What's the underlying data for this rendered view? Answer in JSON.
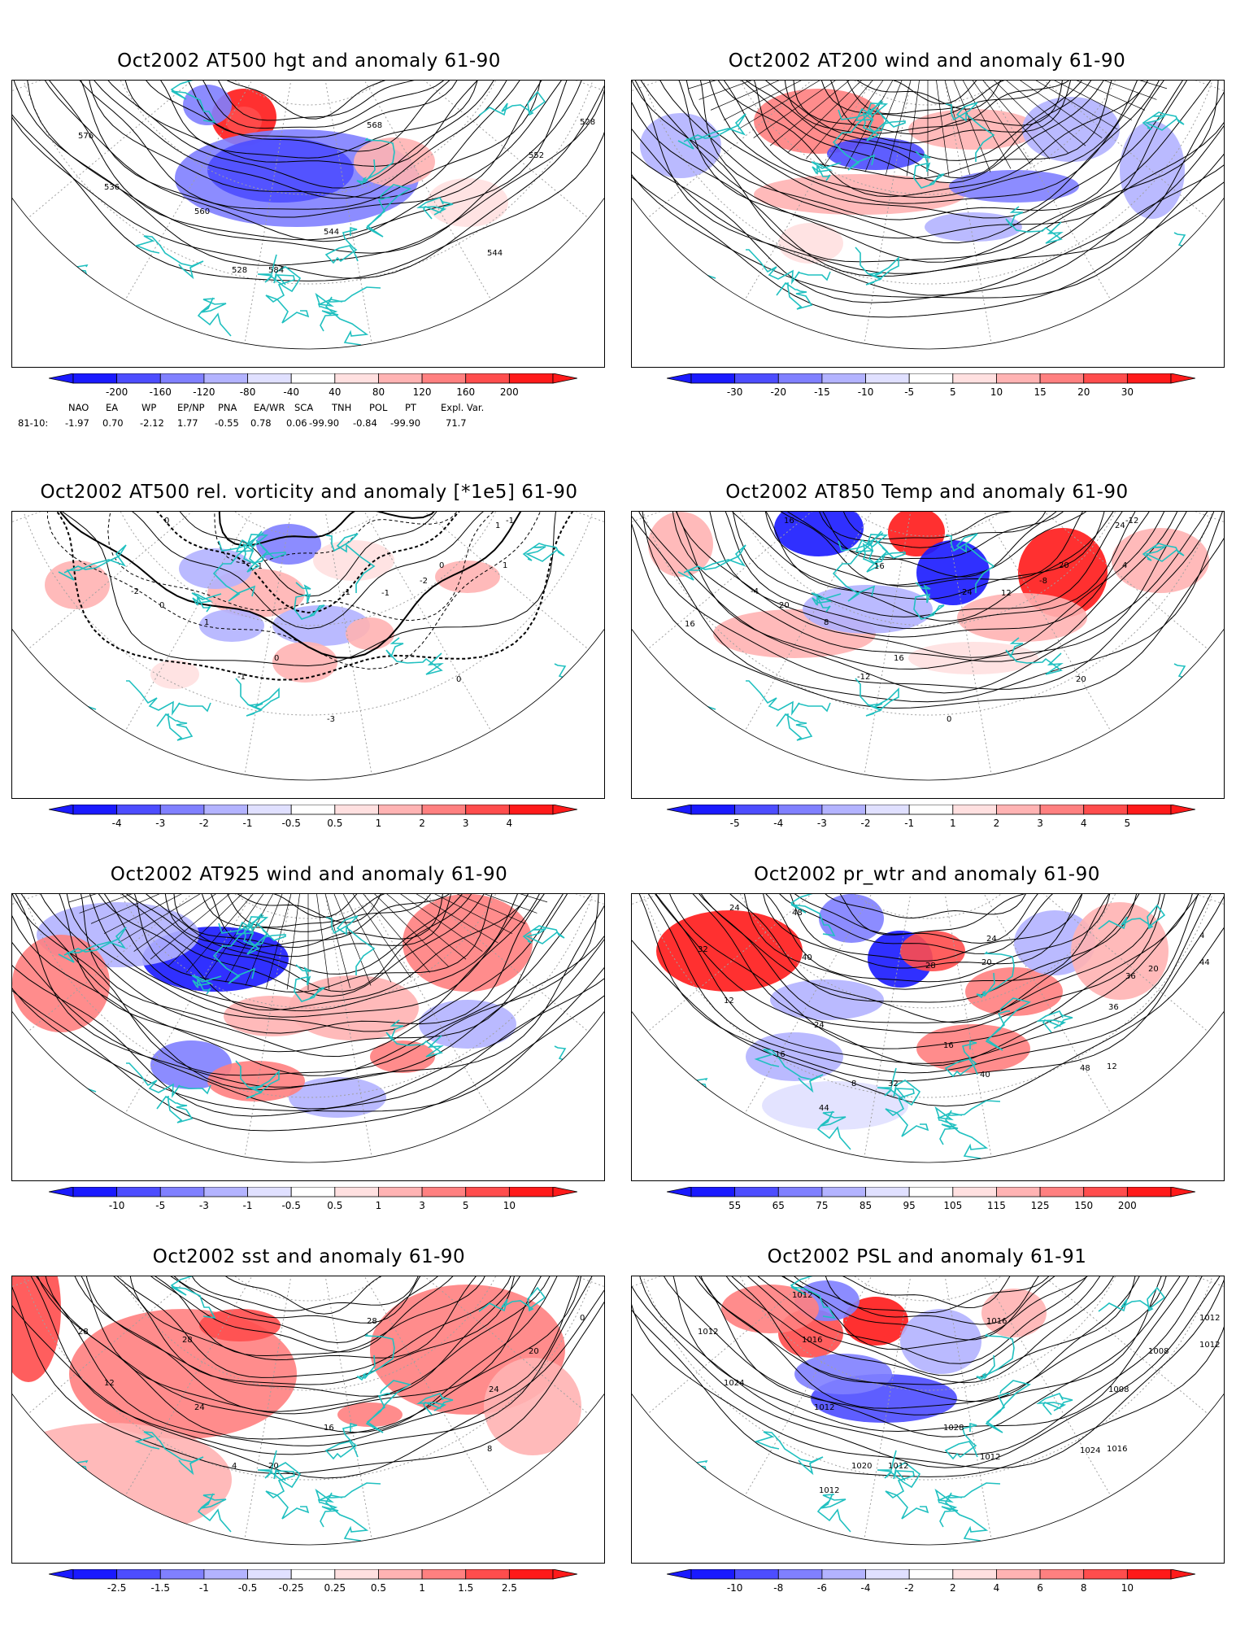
{
  "panels": [
    {
      "id": "p1",
      "title": "Oct2002 AT500 hgt and anomaly 61-90",
      "kind": "hgt",
      "labels": [
        "528",
        "528",
        "544",
        "536",
        "544",
        "552",
        "560",
        "568",
        "576",
        "584"
      ],
      "cbar_ticks": [
        "-200",
        "-160",
        "-120",
        "-80",
        "-40",
        "40",
        "80",
        "120",
        "160",
        "200"
      ]
    },
    {
      "id": "p2",
      "title": "Oct2002 AT200 wind and anomaly 61-90",
      "kind": "wind",
      "labels": [],
      "cbar_ticks": [
        "-30",
        "-20",
        "-15",
        "-10",
        "-5",
        "5",
        "10",
        "15",
        "20",
        "30"
      ]
    },
    {
      "id": "p3",
      "title": "Oct2002 AT500 rel. vorticity and anomaly [*1e5] 61-90",
      "kind": "vort",
      "labels": [
        "-1",
        "-1",
        "-2",
        "-2",
        "-3",
        "1",
        "1",
        "-1",
        "0",
        "0",
        "0",
        "0",
        "-1",
        "1",
        "-1",
        "0"
      ],
      "cbar_ticks": [
        "-4",
        "-3",
        "-2",
        "-1",
        "-0.5",
        "0.5",
        "1",
        "2",
        "3",
        "4"
      ]
    },
    {
      "id": "p4",
      "title": "Oct2002 AT850 Temp and anomaly 61-90",
      "kind": "temp",
      "labels": [
        "-12",
        "-12",
        "-8",
        "-4",
        "0",
        "4",
        "8",
        "12",
        "16",
        "16",
        "20",
        "20",
        "24",
        "24",
        "16",
        "20",
        "16"
      ],
      "cbar_ticks": [
        "-5",
        "-4",
        "-3",
        "-2",
        "-1",
        "1",
        "2",
        "3",
        "4",
        "5"
      ]
    },
    {
      "id": "p5",
      "title": "Oct2002 AT925 wind and anomaly 61-90",
      "kind": "wind",
      "labels": [],
      "cbar_ticks": [
        "-10",
        "-5",
        "-3",
        "-1",
        "-0.5",
        "0.5",
        "1",
        "3",
        "5",
        "10"
      ]
    },
    {
      "id": "p6",
      "title": "Oct2002 pr_wtr and anomaly 61-90",
      "kind": "prw",
      "labels": [
        "4",
        "8",
        "12",
        "12",
        "16",
        "20",
        "24",
        "24",
        "32",
        "32",
        "36",
        "40",
        "40",
        "44",
        "44",
        "48",
        "48",
        "28",
        "36",
        "16",
        "20",
        "24"
      ],
      "cbar_ticks": [
        "55",
        "65",
        "75",
        "85",
        "95",
        "105",
        "115",
        "125",
        "150",
        "200"
      ]
    },
    {
      "id": "p7",
      "title": "Oct2002 sst and anomaly 61-90",
      "kind": "sst",
      "labels": [
        "0",
        "4",
        "8",
        "12",
        "16",
        "20",
        "24",
        "28",
        "28",
        "20",
        "24",
        "28"
      ],
      "cbar_ticks": [
        "-2.5",
        "-1.5",
        "-1",
        "-0.5",
        "-0.25",
        "0.25",
        "0.5",
        "1",
        "1.5",
        "2.5"
      ]
    },
    {
      "id": "p8",
      "title": "Oct2002 PSL and anomaly 61-91",
      "kind": "psl",
      "labels": [
        "1012",
        "1020",
        "1016",
        "1024",
        "1028",
        "1008",
        "1012",
        "1016",
        "1012",
        "1012",
        "1008",
        "1016",
        "1012",
        "1012",
        "1012",
        "1024",
        "1012"
      ],
      "cbar_ticks": [
        "-10",
        "-8",
        "-6",
        "-4",
        "-2",
        "2",
        "4",
        "6",
        "8",
        "10"
      ]
    }
  ],
  "teleconnections": {
    "headers": [
      "NAO",
      "EA",
      "WP",
      "EP/NP",
      "PNA",
      "EA/WR",
      "SCA",
      "TNH",
      "POL",
      "PT",
      "Expl. Var."
    ],
    "row_label": "81-10:",
    "values": [
      "-1.97",
      "0.70",
      "-2.12",
      "1.77",
      "-0.55",
      "0.78",
      "0.06",
      "-99.90",
      "-0.84",
      "-99.90",
      "71.7"
    ]
  },
  "colors": {
    "blues": [
      "#1a1aff",
      "#4d4dff",
      "#8080ff",
      "#b3b3ff",
      "#e0e0ff"
    ],
    "reds": [
      "#ffe0e0",
      "#ffb3b3",
      "#ff8080",
      "#ff4d4d",
      "#ff1a1a"
    ],
    "coast": "#20c0c0",
    "grid": "#a0a0a0",
    "contour": "#000000"
  }
}
